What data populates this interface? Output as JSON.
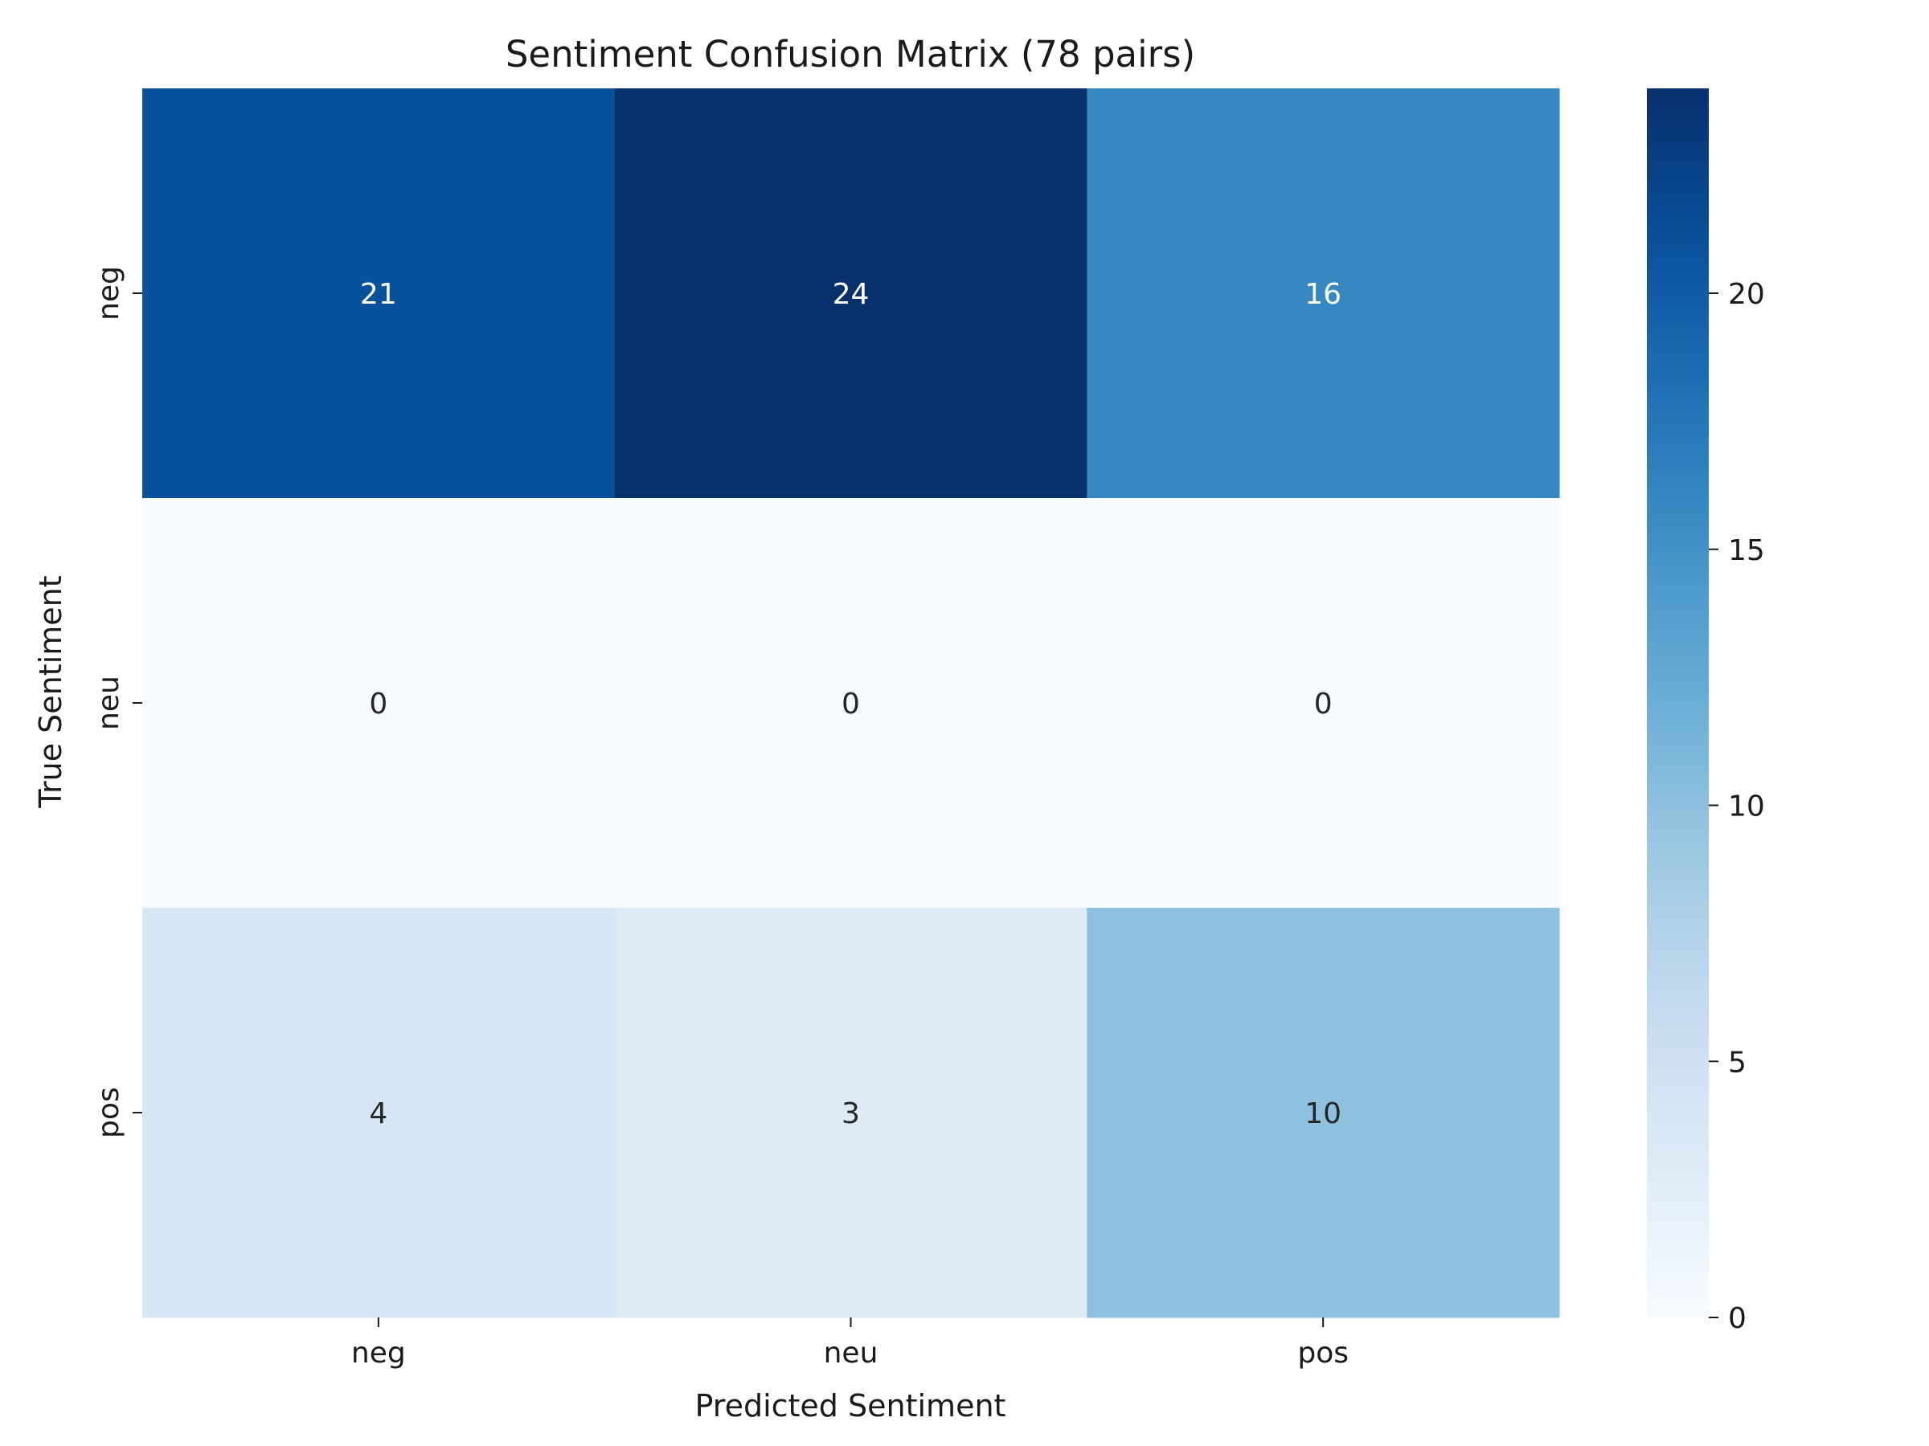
{
  "chart_data": {
    "type": "heatmap",
    "title": "Sentiment Confusion Matrix (78 pairs)",
    "xlabel": "Predicted Sentiment",
    "ylabel": "True Sentiment",
    "x_categories": [
      "neg",
      "neu",
      "pos"
    ],
    "y_categories": [
      "neg",
      "neu",
      "pos"
    ],
    "values": [
      [
        21,
        24,
        16
      ],
      [
        0,
        0,
        0
      ],
      [
        4,
        3,
        10
      ]
    ],
    "colormap": "Blues",
    "colorbar": {
      "range": [
        0,
        24
      ],
      "ticks": [
        0,
        5,
        10,
        15,
        20
      ],
      "tick_labels": [
        "0",
        "5",
        "10",
        "15",
        "20"
      ]
    },
    "annotation_colors": {
      "dark": "#262626",
      "light": "#ffffff"
    }
  }
}
